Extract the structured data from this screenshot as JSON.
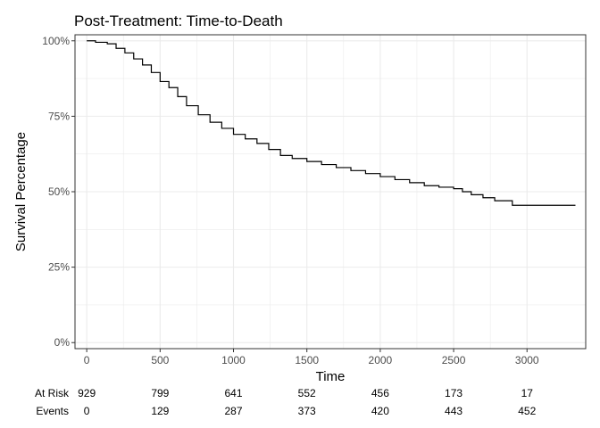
{
  "chart_data": {
    "type": "line",
    "step": true,
    "title": "Post-Treatment: Time-to-Death",
    "xlabel": "Time",
    "ylabel": "Survival Percentage",
    "xlim": [
      -80,
      3400
    ],
    "ylim": [
      -0.02,
      1.02
    ],
    "x_ticks": [
      0,
      500,
      1000,
      1500,
      2000,
      2500,
      3000
    ],
    "x_tick_labels": [
      "0",
      "500",
      "1000",
      "1500",
      "2000",
      "2500",
      "3000"
    ],
    "y_ticks": [
      0,
      0.25,
      0.5,
      0.75,
      1.0
    ],
    "y_tick_labels": [
      "0%",
      "25%",
      "50%",
      "75%",
      "100%"
    ],
    "grid": true,
    "line_color": "#000000",
    "grid_color": "#ebebeb",
    "series": [
      {
        "x": [
          0,
          60,
          140,
          200,
          260,
          320,
          380,
          440,
          500,
          560,
          620,
          680,
          760,
          840,
          920,
          1000,
          1080,
          1160,
          1240,
          1320,
          1400,
          1500,
          1600,
          1700,
          1800,
          1900,
          2000,
          2100,
          2200,
          2300,
          2400,
          2500,
          2560,
          2620,
          2700,
          2780,
          2900,
          3000,
          3100,
          3200,
          3330
        ],
        "y": [
          1.0,
          0.995,
          0.99,
          0.975,
          0.96,
          0.94,
          0.92,
          0.895,
          0.865,
          0.845,
          0.815,
          0.785,
          0.755,
          0.73,
          0.71,
          0.69,
          0.675,
          0.66,
          0.64,
          0.62,
          0.61,
          0.6,
          0.59,
          0.58,
          0.57,
          0.56,
          0.55,
          0.54,
          0.53,
          0.52,
          0.515,
          0.51,
          0.5,
          0.49,
          0.48,
          0.47,
          0.455,
          0.455,
          0.455,
          0.455,
          0.455
        ]
      }
    ],
    "risk_table": {
      "times": [
        0,
        500,
        1000,
        1500,
        2000,
        2500,
        3000
      ],
      "rows": [
        {
          "label": "At Risk",
          "values": [
            "929",
            "799",
            "641",
            "552",
            "456",
            "173",
            "17"
          ]
        },
        {
          "label": "Events",
          "values": [
            "0",
            "129",
            "287",
            "373",
            "420",
            "443",
            "452"
          ]
        }
      ]
    }
  }
}
